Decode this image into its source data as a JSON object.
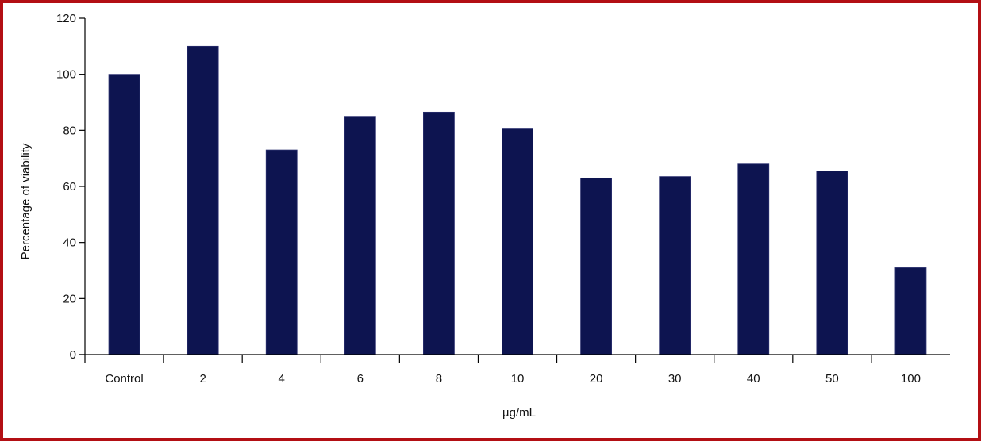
{
  "chart_data": {
    "type": "bar",
    "categories": [
      "Control",
      "2",
      "4",
      "6",
      "8",
      "10",
      "20",
      "30",
      "40",
      "50",
      "100"
    ],
    "values": [
      100,
      110,
      73,
      85,
      86.5,
      80.5,
      63,
      63.5,
      68,
      65.5,
      31
    ],
    "ylim": [
      0,
      120
    ],
    "yticks": [
      "0",
      "20",
      "40",
      "60",
      "80",
      "100",
      "120"
    ],
    "xlabel": "µg/mL",
    "ylabel": "Percentage of viability",
    "grid": false,
    "legend": "none",
    "bar_color": "#0d1450",
    "frame_color": "#b30f14"
  }
}
